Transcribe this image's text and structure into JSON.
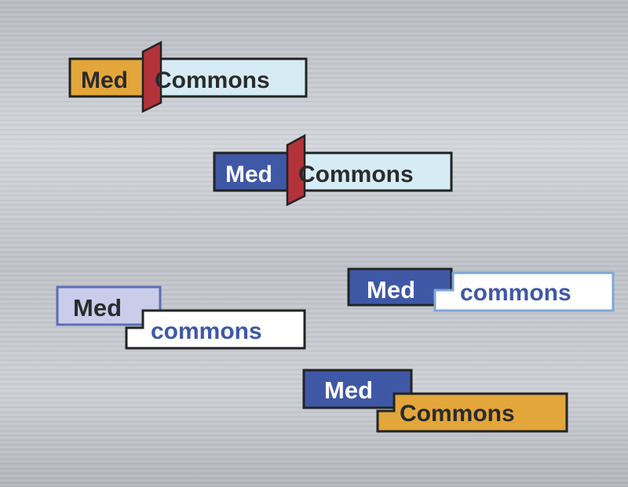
{
  "colors": {
    "orange": "#E3A63B",
    "blue": "#3F58A6",
    "light_blue": "#D6ECF4",
    "lavender": "#C9CDEA",
    "red": "#B3333A",
    "dark_text": "#2B2B2B",
    "white": "#FFFFFF",
    "border": "#232323"
  },
  "logos": [
    {
      "variant": "orange-med-divider",
      "med": "Med",
      "commons": "Commons"
    },
    {
      "variant": "blue-med-divider",
      "med": "Med",
      "commons": "Commons"
    },
    {
      "variant": "lavender-med-stepped",
      "med": "Med",
      "commons": "commons"
    },
    {
      "variant": "blue-med-stepped-outline",
      "med": "Med",
      "commons": "commons"
    },
    {
      "variant": "blue-med-stepped-orange",
      "med": "Med",
      "commons": "Commons"
    }
  ]
}
